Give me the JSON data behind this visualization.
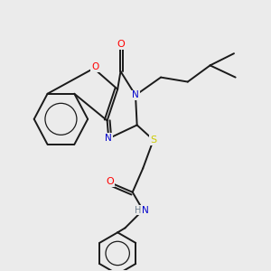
{
  "bg_color": "#ebebeb",
  "bond_color": "#1a1a1a",
  "colors": {
    "O": "#ff0000",
    "N": "#0000cc",
    "S": "#cccc00",
    "H": "#708090",
    "C": "#1a1a1a"
  },
  "figsize": [
    3.0,
    3.0
  ],
  "dpi": 100
}
